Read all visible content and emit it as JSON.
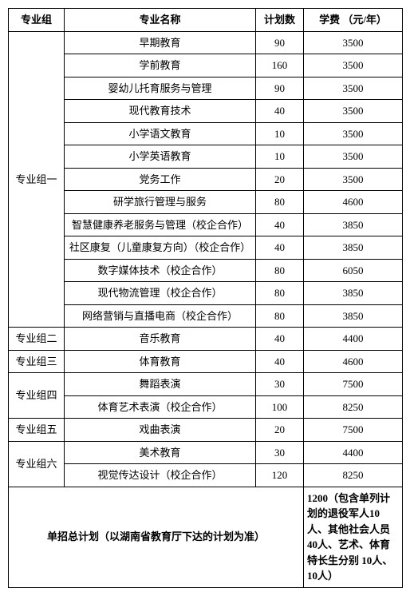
{
  "headers": {
    "group": "专业组",
    "major": "专业名称",
    "plan": "计划数",
    "fee": "学费\n（元/年）"
  },
  "groups": [
    {
      "name": "专业组一",
      "rows": [
        {
          "major": "早期教育",
          "plan": "90",
          "fee": "3500"
        },
        {
          "major": "学前教育",
          "plan": "160",
          "fee": "3500"
        },
        {
          "major": "婴幼儿托育服务与管理",
          "plan": "90",
          "fee": "3500"
        },
        {
          "major": "现代教育技术",
          "plan": "40",
          "fee": "3500"
        },
        {
          "major": "小学语文教育",
          "plan": "10",
          "fee": "3500"
        },
        {
          "major": "小学英语教育",
          "plan": "10",
          "fee": "3500"
        },
        {
          "major": "党务工作",
          "plan": "20",
          "fee": "3500"
        },
        {
          "major": "研学旅行管理与服务",
          "plan": "80",
          "fee": "4600"
        },
        {
          "major": "智慧健康养老服务与管理（校企合作）",
          "plan": "40",
          "fee": "3850"
        },
        {
          "major": "社区康复（儿童康复方向）（校企合作）",
          "plan": "40",
          "fee": "3850"
        },
        {
          "major": "数字媒体技术（校企合作）",
          "plan": "80",
          "fee": "6050"
        },
        {
          "major": "现代物流管理（校企合作）",
          "plan": "80",
          "fee": "3850"
        },
        {
          "major": "网络营销与直播电商（校企合作）",
          "plan": "80",
          "fee": "3850"
        }
      ]
    },
    {
      "name": "专业组二",
      "rows": [
        {
          "major": "音乐教育",
          "plan": "40",
          "fee": "4400"
        }
      ]
    },
    {
      "name": "专业组三",
      "rows": [
        {
          "major": "体育教育",
          "plan": "40",
          "fee": "4600"
        }
      ]
    },
    {
      "name": "专业组四",
      "rows": [
        {
          "major": "舞蹈表演",
          "plan": "30",
          "fee": "7500"
        },
        {
          "major": "体育艺术表演（校企合作）",
          "plan": "100",
          "fee": "8250"
        }
      ]
    },
    {
      "name": "专业组五",
      "rows": [
        {
          "major": "戏曲表演",
          "plan": "20",
          "fee": "7500"
        }
      ]
    },
    {
      "name": "专业组六",
      "rows": [
        {
          "major": "美术教育",
          "plan": "30",
          "fee": "4400"
        },
        {
          "major": "视觉传达设计（校企合作）",
          "plan": "120",
          "fee": "8250"
        }
      ]
    }
  ],
  "footer": {
    "left": "单招总计划（以湖南省教育厅下达的计划为准）",
    "right": "1200（包含单列计划的退役军人10人、其他社会人员40人、艺术、体育特长生分别 10人、10人）"
  }
}
